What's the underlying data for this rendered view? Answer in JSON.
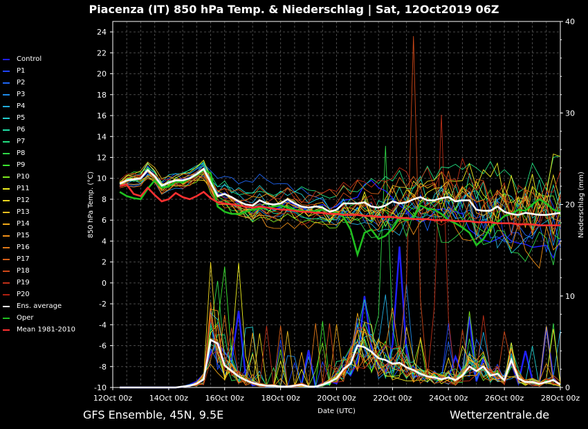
{
  "header": {
    "title": "Piacenza  (IT)  850 hPa Temp. & Niederschlag | Sat, 12Oct2019 06Z"
  },
  "footer": {
    "model": "GFS Ensemble, 45N, 9.5E",
    "source": "Wetterzentrale.de"
  },
  "chart_data": {
    "type": "line",
    "title": "Piacenza  (IT)  850 hPa Temp. & Niederschlag | Sat, 12Oct2019 06Z",
    "xlabel": "Date (UTC)",
    "ylabel": "850 hPa Temp. (°C)",
    "y2label": "Niederschlag (mm)",
    "ylim": [
      -10,
      25
    ],
    "y2lim": [
      0,
      40
    ],
    "xlim_days": [
      12.0,
      28.0
    ],
    "x_ticks": [
      "12Oct 00z",
      "14Oct 00z",
      "16Oct 00z",
      "18Oct 00z",
      "20Oct 00z",
      "22Oct 00z",
      "24Oct 00z",
      "26Oct 00z",
      "28Oct 00z"
    ],
    "y_ticks": [
      -10,
      -8,
      -6,
      -4,
      -2,
      0,
      2,
      4,
      6,
      8,
      10,
      12,
      14,
      16,
      18,
      20,
      22,
      24
    ],
    "y2_ticks": [
      0,
      10,
      20,
      30,
      40
    ],
    "grid": true,
    "legend_position": "left",
    "step_hours": 6,
    "start": "12Oct 06z",
    "legend": [
      {
        "name": "Control",
        "color": "#2020ff"
      },
      {
        "name": "P1",
        "color": "#1f44ff"
      },
      {
        "name": "P2",
        "color": "#1e66f5"
      },
      {
        "name": "P3",
        "color": "#1e8ae8"
      },
      {
        "name": "P4",
        "color": "#22aee0"
      },
      {
        "name": "P5",
        "color": "#22d0d0"
      },
      {
        "name": "P6",
        "color": "#20e0a8"
      },
      {
        "name": "P7",
        "color": "#22e080"
      },
      {
        "name": "P8",
        "color": "#30d848"
      },
      {
        "name": "P9",
        "color": "#3ce830"
      },
      {
        "name": "P10",
        "color": "#7ee81e"
      },
      {
        "name": "P11",
        "color": "#f0f020"
      },
      {
        "name": "P12",
        "color": "#f0d820"
      },
      {
        "name": "P13",
        "color": "#f0c020"
      },
      {
        "name": "P14",
        "color": "#f0a818"
      },
      {
        "name": "P15",
        "color": "#f09018"
      },
      {
        "name": "P16",
        "color": "#e07818"
      },
      {
        "name": "P17",
        "color": "#d86018"
      },
      {
        "name": "P18",
        "color": "#d04818"
      },
      {
        "name": "P19",
        "color": "#c03018"
      },
      {
        "name": "P20",
        "color": "#b02010"
      },
      {
        "name": "Ens. average",
        "color": "#ffffff"
      },
      {
        "name": "Oper",
        "color": "#20c020"
      },
      {
        "name": "Mean 1981-2010",
        "color": "#ff3030"
      }
    ],
    "temp_average": [
      9.5,
      9.8,
      9.9,
      10.0,
      10.8,
      10.2,
      9.3,
      9.6,
      9.8,
      9.8,
      10.0,
      10.4,
      10.9,
      9.6,
      8.3,
      8.5,
      8.2,
      7.8,
      7.5,
      7.4,
      7.9,
      7.6,
      7.5,
      7.6,
      8.0,
      7.6,
      7.3,
      7.2,
      7.3,
      7.2,
      6.8,
      7.0,
      7.6,
      7.6,
      7.6,
      7.7,
      7.3,
      7.2,
      7.4,
      7.8,
      7.6,
      7.7,
      8.0,
      8.2,
      7.9,
      7.9,
      8.1,
      8.2,
      7.8,
      7.9,
      7.9,
      7.0,
      6.9,
      6.9,
      7.3,
      6.8,
      6.6,
      6.5,
      6.7,
      6.6,
      6.5,
      6.5,
      6.6,
      6.7
    ],
    "temp_mean_climate": [
      9.3,
      9.4,
      8.5,
      8.3,
      9.1,
      8.4,
      7.8,
      8.0,
      8.6,
      8.2,
      8.0,
      8.3,
      8.7,
      8.1,
      7.7,
      7.6,
      7.5,
      7.4,
      7.3,
      7.2,
      7.3,
      7.2,
      7.1,
      7.0,
      7.0,
      6.9,
      6.8,
      6.8,
      6.7,
      6.7,
      6.6,
      6.6,
      6.5,
      6.5,
      6.5,
      6.4,
      6.4,
      6.3,
      6.3,
      6.3,
      6.2,
      6.2,
      6.1,
      6.1,
      6.1,
      6.0,
      6.0,
      6.0,
      5.9,
      5.9,
      5.9,
      5.8,
      5.8,
      5.8,
      5.7,
      5.7,
      5.7,
      5.6,
      5.6,
      5.6,
      5.5,
      5.5,
      5.5,
      5.5
    ],
    "temp_oper": [
      8.7,
      8.3,
      8.1,
      8.0,
      9.0,
      9.8,
      9.1,
      9.2,
      9.7,
      9.6,
      10.0,
      10.3,
      10.8,
      10.5,
      7.3,
      6.8,
      6.6,
      6.6,
      6.8,
      7.0,
      7.1,
      7.2,
      7.3,
      7.4,
      7.2,
      7.0,
      6.9,
      6.8,
      6.9,
      7.0,
      6.9,
      6.7,
      6.3,
      5.1,
      2.7,
      4.8,
      5.1,
      4.2,
      4.5,
      5.2,
      6.2,
      6.0,
      6.2,
      7.4,
      7.1,
      7.0,
      6.6,
      6.0,
      5.7,
      5.3,
      4.8,
      3.6,
      4.2,
      5.3,
      5.8,
      6.4,
      6.6,
      7.0,
      6.9,
      7.5,
      8.0,
      7.6,
      7.0,
      6.8
    ],
    "temp_control": [
      9.2,
      9.7,
      9.8,
      9.9,
      10.6,
      10.0,
      9.2,
      9.5,
      9.9,
      9.9,
      10.1,
      10.6,
      11.2,
      9.8,
      8.5,
      8.6,
      8.1,
      7.6,
      7.3,
      7.1,
      7.6,
      7.2,
      7.0,
      7.3,
      7.8,
      7.5,
      7.1,
      7.0,
      7.3,
      7.5,
      7.1,
      7.3,
      7.9,
      8.0,
      8.2,
      9.4,
      9.8,
      9.1,
      8.8,
      8.1,
      7.4,
      6.9,
      6.2,
      5.8,
      6.1,
      6.8,
      7.1,
      7.0,
      6.8,
      6.6,
      5.1,
      4.6,
      4.1,
      3.9,
      4.2,
      4.6,
      4.0,
      3.8,
      3.7,
      3.4,
      3.5,
      3.6,
      2.4,
      4.2
    ],
    "precip_average": [
      0,
      0,
      0,
      0,
      0,
      0,
      0,
      0,
      0,
      0.1,
      0.2,
      0.4,
      0.9,
      5.2,
      4.8,
      2.4,
      1.8,
      1.2,
      0.8,
      0.5,
      0.3,
      0.2,
      0.2,
      0.1,
      0.1,
      0.2,
      0.3,
      0.1,
      0.1,
      0.3,
      0.6,
      1.0,
      2.0,
      2.6,
      4.6,
      4.4,
      3.9,
      3.2,
      3.0,
      2.6,
      2.7,
      2.2,
      1.9,
      1.5,
      1.2,
      1.1,
      0.9,
      1.1,
      0.8,
      1.3,
      2.3,
      1.8,
      2.3,
      1.3,
      1.5,
      0.8,
      3.0,
      1.0,
      0.6,
      0.6,
      0.4,
      0.6,
      0.8,
      0.3
    ],
    "precip_peaks_mm": [
      {
        "member": "P18",
        "x_index": 42,
        "value": 38.4
      },
      {
        "member": "P19",
        "x_index": 46,
        "value": 29.8
      },
      {
        "member": "P8",
        "x_index": 38,
        "value": 26.4
      },
      {
        "member": "Control",
        "x_index": 40,
        "value": 15.4
      },
      {
        "member": "P3",
        "x_index": 41,
        "value": 11.3
      },
      {
        "member": "P11",
        "x_index": 17,
        "value": 13.6
      },
      {
        "member": "P9",
        "x_index": 15,
        "value": 13.2
      }
    ]
  }
}
